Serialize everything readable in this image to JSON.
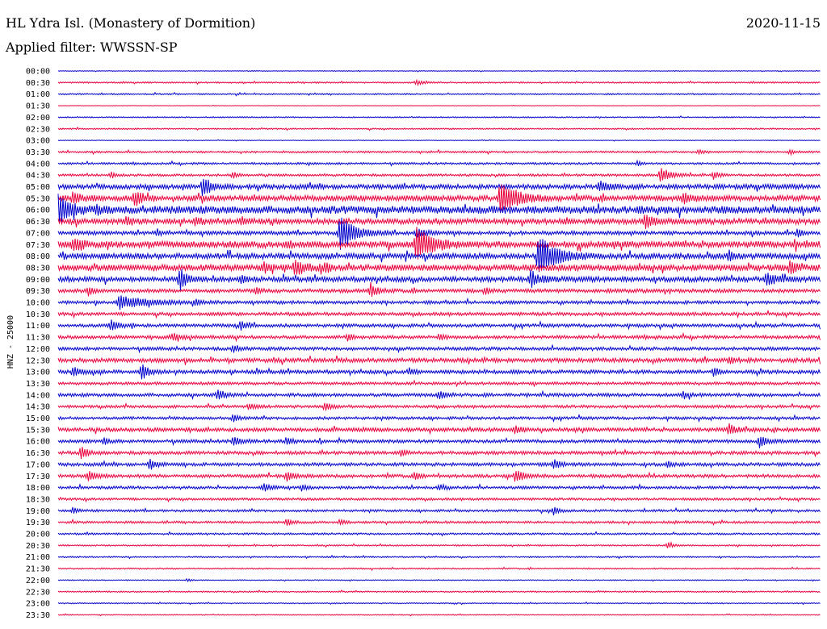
{
  "header": {
    "station": "HL Ydra Isl. (Monastery of Dormition)",
    "date": "2020-11-15",
    "filter": "Applied filter: WWSSN-SP",
    "channel": "HNZ - 25000"
  },
  "chart_data": {
    "type": "line",
    "title": "HL Ydra Isl. (Monastery of Dormition)",
    "subtitle": "Applied filter: WWSSN-SP",
    "ylabel": "HNZ - 25000",
    "date": "2020-11-15",
    "row_labels": [
      "00:00",
      "00:30",
      "01:00",
      "01:30",
      "02:00",
      "02:30",
      "03:00",
      "03:30",
      "04:00",
      "04:30",
      "05:00",
      "05:30",
      "06:00",
      "06:30",
      "07:00",
      "07:30",
      "08:00",
      "08:30",
      "09:00",
      "09:30",
      "10:00",
      "10:30",
      "11:00",
      "11:30",
      "12:00",
      "12:30",
      "13:00",
      "13:30",
      "14:00",
      "14:30",
      "15:00",
      "15:30",
      "16:00",
      "16:30",
      "17:00",
      "17:30",
      "18:00",
      "18:30",
      "19:00",
      "19:30",
      "20:00",
      "20:30",
      "21:00",
      "21:30",
      "22:00",
      "22:30",
      "23:00",
      "23:30"
    ],
    "series_colors": [
      "#0000cc",
      "#e8003c"
    ],
    "grid": false,
    "row_noise": [
      0.3,
      0.6,
      0.6,
      0.2,
      0.5,
      0.6,
      0.3,
      0.8,
      0.9,
      1.0,
      2.0,
      2.4,
      3.2,
      2.4,
      1.6,
      2.8,
      2.4,
      2.6,
      2.2,
      1.6,
      1.4,
      1.4,
      1.4,
      1.4,
      1.4,
      1.8,
      1.6,
      1.2,
      1.4,
      1.2,
      1.2,
      1.6,
      1.4,
      1.4,
      1.4,
      1.4,
      1.2,
      1.0,
      1.0,
      1.0,
      0.8,
      0.6,
      0.6,
      0.6,
      0.4,
      0.6,
      0.5,
      0.4
    ],
    "events": [
      {
        "row": 1,
        "t": 0.47,
        "amp": 3,
        "dur": 0.008
      },
      {
        "row": 7,
        "t": 0.84,
        "amp": 3,
        "dur": 0.006
      },
      {
        "row": 7,
        "t": 0.96,
        "amp": 3,
        "dur": 0.006
      },
      {
        "row": 8,
        "t": 0.76,
        "amp": 3,
        "dur": 0.005
      },
      {
        "row": 9,
        "t": 0.07,
        "amp": 4,
        "dur": 0.005
      },
      {
        "row": 9,
        "t": 0.23,
        "amp": 4,
        "dur": 0.005
      },
      {
        "row": 9,
        "t": 0.79,
        "amp": 10,
        "dur": 0.012
      },
      {
        "row": 9,
        "t": 0.86,
        "amp": 5,
        "dur": 0.006
      },
      {
        "row": 10,
        "t": 0.19,
        "amp": 12,
        "dur": 0.01
      },
      {
        "row": 10,
        "t": 0.71,
        "amp": 6,
        "dur": 0.012
      },
      {
        "row": 11,
        "t": 0.02,
        "amp": 7,
        "dur": 0.01
      },
      {
        "row": 11,
        "t": 0.1,
        "amp": 10,
        "dur": 0.01
      },
      {
        "row": 11,
        "t": 0.58,
        "amp": 20,
        "dur": 0.02
      },
      {
        "row": 11,
        "t": 0.82,
        "amp": 5,
        "dur": 0.012
      },
      {
        "row": 12,
        "t": 0.0,
        "amp": 18,
        "dur": 0.015
      },
      {
        "row": 12,
        "t": 0.05,
        "amp": 4,
        "dur": 0.006
      },
      {
        "row": 13,
        "t": 0.09,
        "amp": 5,
        "dur": 0.006
      },
      {
        "row": 13,
        "t": 0.18,
        "amp": 5,
        "dur": 0.006
      },
      {
        "row": 13,
        "t": 0.24,
        "amp": 4,
        "dur": 0.006
      },
      {
        "row": 13,
        "t": 0.77,
        "amp": 8,
        "dur": 0.01
      },
      {
        "row": 14,
        "t": 0.13,
        "amp": 4,
        "dur": 0.005
      },
      {
        "row": 14,
        "t": 0.37,
        "amp": 22,
        "dur": 0.018
      },
      {
        "row": 14,
        "t": 0.47,
        "amp": 6,
        "dur": 0.01
      },
      {
        "row": 14,
        "t": 0.97,
        "amp": 5,
        "dur": 0.006
      },
      {
        "row": 15,
        "t": 0.02,
        "amp": 8,
        "dur": 0.012
      },
      {
        "row": 15,
        "t": 0.3,
        "amp": 4,
        "dur": 0.006
      },
      {
        "row": 15,
        "t": 0.47,
        "amp": 20,
        "dur": 0.02
      },
      {
        "row": 16,
        "t": 0.63,
        "amp": 26,
        "dur": 0.02
      },
      {
        "row": 16,
        "t": 0.88,
        "amp": 5,
        "dur": 0.006
      },
      {
        "row": 17,
        "t": 0.27,
        "amp": 6,
        "dur": 0.008
      },
      {
        "row": 17,
        "t": 0.31,
        "amp": 10,
        "dur": 0.012
      },
      {
        "row": 17,
        "t": 0.35,
        "amp": 5,
        "dur": 0.006
      },
      {
        "row": 17,
        "t": 0.96,
        "amp": 8,
        "dur": 0.008
      },
      {
        "row": 18,
        "t": 0.16,
        "amp": 14,
        "dur": 0.008
      },
      {
        "row": 18,
        "t": 0.24,
        "amp": 4,
        "dur": 0.006
      },
      {
        "row": 18,
        "t": 0.62,
        "amp": 10,
        "dur": 0.01
      },
      {
        "row": 18,
        "t": 0.93,
        "amp": 8,
        "dur": 0.01
      },
      {
        "row": 19,
        "t": 0.04,
        "amp": 5,
        "dur": 0.006
      },
      {
        "row": 19,
        "t": 0.26,
        "amp": 4,
        "dur": 0.005
      },
      {
        "row": 19,
        "t": 0.41,
        "amp": 9,
        "dur": 0.008
      },
      {
        "row": 19,
        "t": 0.56,
        "amp": 4,
        "dur": 0.006
      },
      {
        "row": 20,
        "t": 0.08,
        "amp": 8,
        "dur": 0.035
      },
      {
        "row": 20,
        "t": 0.18,
        "amp": 4,
        "dur": 0.006
      },
      {
        "row": 22,
        "t": 0.07,
        "amp": 7,
        "dur": 0.008
      },
      {
        "row": 22,
        "t": 0.24,
        "amp": 5,
        "dur": 0.006
      },
      {
        "row": 23,
        "t": 0.15,
        "amp": 5,
        "dur": 0.008
      },
      {
        "row": 23,
        "t": 0.38,
        "amp": 4,
        "dur": 0.006
      },
      {
        "row": 23,
        "t": 0.5,
        "amp": 4,
        "dur": 0.006
      },
      {
        "row": 24,
        "t": 0.23,
        "amp": 4,
        "dur": 0.008
      },
      {
        "row": 25,
        "t": 0.88,
        "amp": 4,
        "dur": 0.008
      },
      {
        "row": 25,
        "t": 1.0,
        "amp": 5,
        "dur": 0.006
      },
      {
        "row": 26,
        "t": 0.02,
        "amp": 6,
        "dur": 0.008
      },
      {
        "row": 26,
        "t": 0.11,
        "amp": 10,
        "dur": 0.008
      },
      {
        "row": 26,
        "t": 0.46,
        "amp": 4,
        "dur": 0.008
      },
      {
        "row": 26,
        "t": 0.86,
        "amp": 5,
        "dur": 0.006
      },
      {
        "row": 28,
        "t": 0.21,
        "amp": 7,
        "dur": 0.008
      },
      {
        "row": 28,
        "t": 0.5,
        "amp": 5,
        "dur": 0.008
      },
      {
        "row": 28,
        "t": 0.82,
        "amp": 4,
        "dur": 0.008
      },
      {
        "row": 29,
        "t": 0.25,
        "amp": 4,
        "dur": 0.008
      },
      {
        "row": 29,
        "t": 0.35,
        "amp": 5,
        "dur": 0.008
      },
      {
        "row": 30,
        "t": 0.23,
        "amp": 5,
        "dur": 0.006
      },
      {
        "row": 31,
        "t": 0.6,
        "amp": 4,
        "dur": 0.01
      },
      {
        "row": 31,
        "t": 0.88,
        "amp": 7,
        "dur": 0.008
      },
      {
        "row": 32,
        "t": 0.06,
        "amp": 4,
        "dur": 0.006
      },
      {
        "row": 32,
        "t": 0.23,
        "amp": 6,
        "dur": 0.008
      },
      {
        "row": 32,
        "t": 0.3,
        "amp": 5,
        "dur": 0.006
      },
      {
        "row": 32,
        "t": 0.92,
        "amp": 8,
        "dur": 0.008
      },
      {
        "row": 33,
        "t": 0.03,
        "amp": 9,
        "dur": 0.008
      },
      {
        "row": 33,
        "t": 0.45,
        "amp": 4,
        "dur": 0.006
      },
      {
        "row": 34,
        "t": 0.12,
        "amp": 6,
        "dur": 0.008
      },
      {
        "row": 34,
        "t": 0.65,
        "amp": 6,
        "dur": 0.008
      },
      {
        "row": 34,
        "t": 0.8,
        "amp": 4,
        "dur": 0.006
      },
      {
        "row": 35,
        "t": 0.04,
        "amp": 6,
        "dur": 0.01
      },
      {
        "row": 35,
        "t": 0.3,
        "amp": 6,
        "dur": 0.008
      },
      {
        "row": 35,
        "t": 0.47,
        "amp": 4,
        "dur": 0.006
      },
      {
        "row": 35,
        "t": 0.6,
        "amp": 8,
        "dur": 0.01
      },
      {
        "row": 36,
        "t": 0.27,
        "amp": 5,
        "dur": 0.008
      },
      {
        "row": 36,
        "t": 0.32,
        "amp": 4,
        "dur": 0.006
      },
      {
        "row": 36,
        "t": 0.5,
        "amp": 4,
        "dur": 0.008
      },
      {
        "row": 38,
        "t": 0.02,
        "amp": 4,
        "dur": 0.006
      },
      {
        "row": 38,
        "t": 0.65,
        "amp": 5,
        "dur": 0.006
      },
      {
        "row": 39,
        "t": 0.3,
        "amp": 5,
        "dur": 0.006
      },
      {
        "row": 39,
        "t": 0.37,
        "amp": 3,
        "dur": 0.006
      },
      {
        "row": 41,
        "t": 0.8,
        "amp": 4,
        "dur": 0.006
      },
      {
        "row": 44,
        "t": 0.17,
        "amp": 2,
        "dur": 0.004
      }
    ]
  }
}
